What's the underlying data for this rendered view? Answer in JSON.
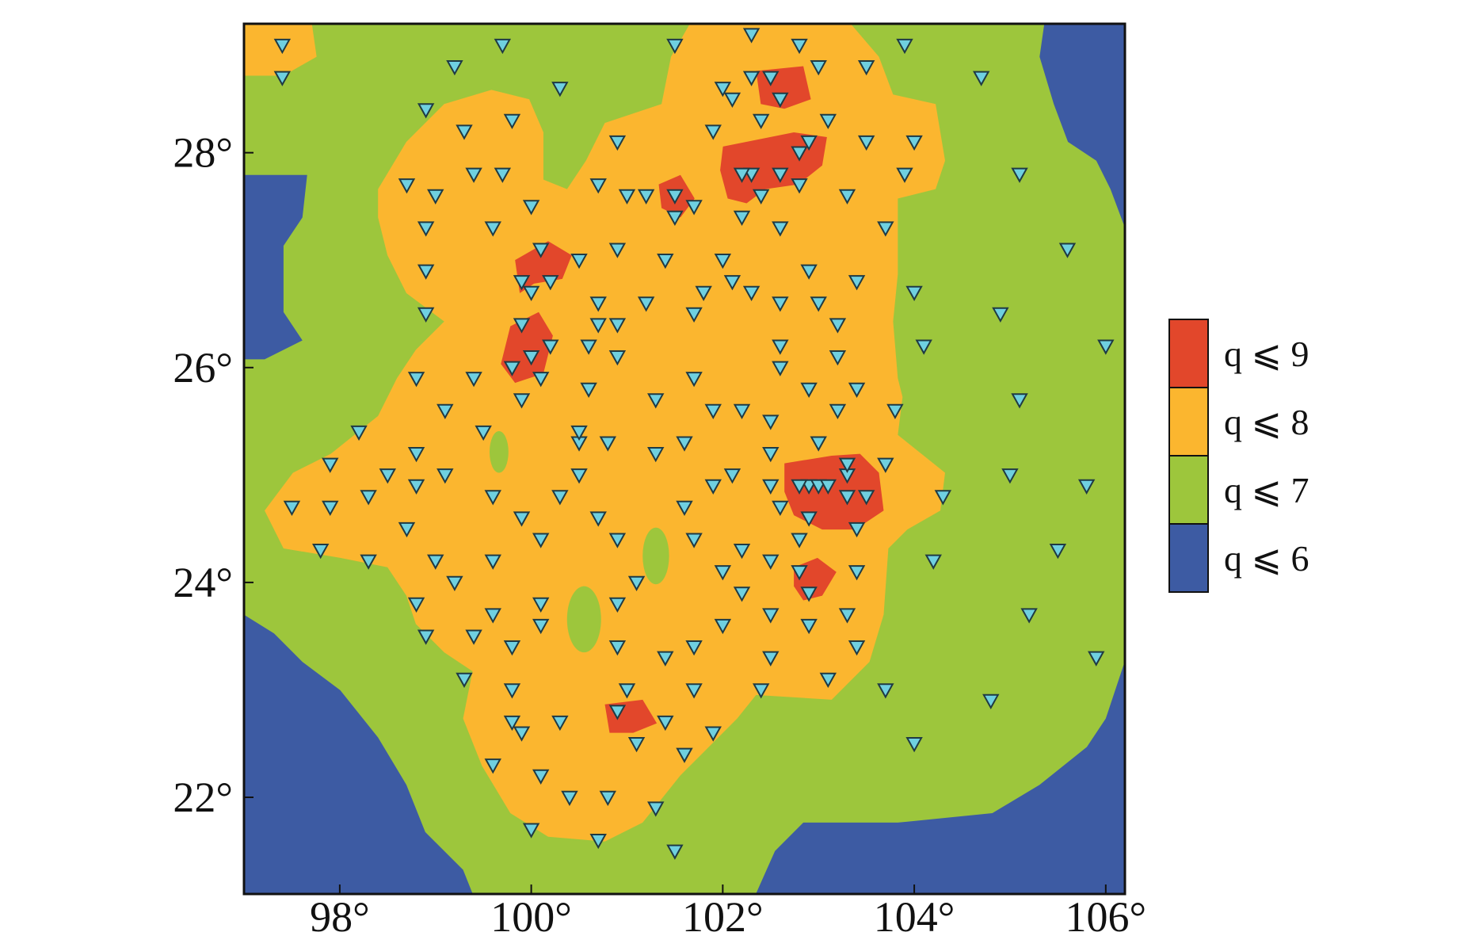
{
  "chart_data": {
    "type": "map",
    "xlim": [
      97,
      106.2
    ],
    "ylim": [
      21.1,
      29.2
    ],
    "xticks": [
      {
        "value": 98,
        "label": "98°"
      },
      {
        "value": 100,
        "label": "100°"
      },
      {
        "value": 102,
        "label": "102°"
      },
      {
        "value": 104,
        "label": "104°"
      },
      {
        "value": 106,
        "label": "106°"
      }
    ],
    "yticks": [
      {
        "value": 22,
        "label": "22°"
      },
      {
        "value": 24,
        "label": "24°"
      },
      {
        "value": 26,
        "label": "26°"
      },
      {
        "value": 28,
        "label": "28°"
      }
    ],
    "legend": [
      {
        "label": "q ⩽ 9",
        "color": "#e2472b"
      },
      {
        "label": "q ⩽ 8",
        "color": "#fbb62f"
      },
      {
        "label": "q ⩽ 7",
        "color": "#9dc63c"
      },
      {
        "label": "q ⩽ 6",
        "color": "#3d5ba3"
      }
    ],
    "stations": {
      "color": "#6fd0e0",
      "x": [
        97.4,
        97.4,
        99.7,
        99.2,
        100.3,
        98.9,
        99.8,
        99.3,
        98.7,
        99.0,
        99.4,
        99.7,
        100.0,
        98.9,
        99.6,
        98.9,
        98.9,
        98.8,
        99.1,
        99.4,
        99.5,
        98.2,
        97.9,
        97.5,
        97.9,
        97.8,
        98.3,
        98.5,
        98.7,
        98.8,
        98.8,
        99.1,
        98.3,
        99.0,
        99.2,
        98.8,
        98.9,
        99.3,
        99.4,
        99.6,
        99.6,
        99.9,
        99.6,
        99.8,
        99.8,
        99.8,
        99.9,
        99.6,
        100.1,
        100.3,
        100.0,
        100.4,
        100.8,
        100.7,
        101.3,
        101.5,
        101.6,
        101.9,
        101.4,
        101.1,
        101.0,
        100.9,
        101.4,
        101.7,
        101.7,
        102.0,
        102.4,
        102.5,
        102.9,
        103.1,
        103.3,
        103.4,
        103.7,
        104.0,
        104.8,
        105.2,
        105.9,
        105.5,
        105.8,
        105.0,
        104.3,
        104.2,
        103.4,
        102.5,
        102.2,
        102.0,
        101.7,
        101.1,
        100.9,
        100.7,
        100.9,
        100.1,
        100.1,
        100.1,
        100.3,
        100.5,
        100.5,
        100.8,
        101.3,
        101.6,
        101.3,
        101.6,
        101.9,
        102.1,
        102.2,
        102.5,
        102.5,
        102.5,
        102.6,
        102.8,
        102.9,
        103.0,
        103.3,
        103.4,
        103.7,
        103.8,
        103.2,
        102.9,
        103.4,
        103.2,
        103.2,
        103.0,
        102.9,
        103.4,
        104.0,
        104.1,
        104.9,
        106.0,
        105.1,
        105.6,
        105.1,
        104.7,
        103.9,
        103.5,
        104.0,
        103.5,
        103.9,
        103.7,
        103.3,
        103.1,
        103.0,
        102.8,
        102.3,
        101.5,
        102.3,
        102.0,
        102.1,
        101.9,
        102.5,
        102.6,
        102.4,
        102.9,
        102.8,
        102.6,
        102.3,
        102.2,
        102.4,
        102.8,
        102.6,
        102.2,
        101.5,
        101.7,
        101.5,
        101.2,
        101.0,
        100.7,
        100.9,
        100.9,
        101.4,
        102.0,
        102.1,
        102.3,
        102.6,
        101.8,
        101.7,
        101.2,
        100.9,
        100.7,
        100.7,
        100.5,
        100.1,
        100.2,
        99.9,
        100.0,
        99.9,
        100.2,
        100.0,
        99.8,
        100.1,
        99.9,
        100.6,
        100.9,
        100.6,
        100.5,
        101.7,
        101.9,
        102.2,
        102.5,
        102.6,
        102.6,
        102.8,
        103.0,
        103.1,
        103.3,
        103.5,
        103.3,
        102.9,
        102.8,
        102.9,
        100.9
      ],
      "y": [
        29.0,
        28.7,
        29.0,
        28.8,
        28.6,
        28.4,
        28.3,
        28.2,
        27.7,
        27.6,
        27.8,
        27.8,
        27.5,
        27.3,
        27.3,
        26.9,
        26.5,
        25.9,
        25.6,
        25.9,
        25.4,
        25.4,
        25.1,
        24.7,
        24.7,
        24.3,
        24.8,
        25.0,
        24.5,
        25.2,
        24.9,
        25.0,
        24.2,
        24.2,
        24.0,
        23.8,
        23.5,
        23.1,
        23.5,
        23.7,
        24.8,
        24.6,
        24.2,
        23.4,
        23.0,
        22.7,
        22.6,
        22.3,
        22.2,
        22.7,
        21.7,
        22.0,
        22.0,
        21.6,
        21.9,
        21.5,
        22.4,
        22.6,
        22.7,
        22.5,
        23.0,
        23.4,
        23.3,
        23.0,
        23.4,
        23.6,
        23.0,
        23.3,
        23.6,
        23.1,
        23.7,
        23.4,
        23.0,
        22.5,
        22.9,
        23.7,
        23.3,
        24.3,
        24.9,
        25.0,
        24.8,
        24.2,
        24.1,
        23.7,
        23.9,
        24.1,
        24.4,
        24.0,
        23.8,
        24.6,
        24.4,
        24.4,
        23.8,
        23.6,
        24.8,
        25.0,
        25.3,
        25.3,
        25.2,
        25.3,
        25.7,
        24.7,
        24.9,
        25.0,
        24.3,
        24.2,
        24.9,
        25.2,
        24.7,
        24.4,
        24.9,
        25.3,
        25.0,
        24.5,
        25.1,
        25.6,
        25.6,
        25.8,
        25.8,
        26.1,
        26.4,
        26.6,
        26.9,
        26.8,
        26.7,
        26.2,
        26.5,
        26.2,
        25.7,
        27.1,
        27.8,
        28.7,
        29.0,
        28.8,
        28.1,
        28.1,
        27.8,
        27.3,
        27.6,
        28.3,
        28.8,
        29.0,
        29.1,
        29.0,
        28.7,
        28.6,
        28.5,
        28.2,
        28.7,
        28.5,
        28.3,
        28.1,
        28.0,
        27.8,
        27.8,
        27.8,
        27.6,
        27.7,
        27.3,
        27.4,
        27.6,
        27.5,
        27.4,
        27.6,
        27.6,
        27.7,
        28.1,
        27.1,
        27.0,
        27.0,
        26.8,
        26.7,
        26.6,
        26.7,
        26.5,
        26.6,
        26.4,
        26.6,
        26.4,
        27.0,
        27.1,
        26.8,
        26.8,
        26.7,
        26.4,
        26.2,
        26.1,
        26.0,
        25.9,
        25.7,
        26.2,
        26.1,
        25.8,
        25.4,
        25.9,
        25.6,
        25.6,
        25.5,
        26.0,
        26.2,
        24.9,
        24.9,
        24.9,
        24.8,
        24.8,
        25.1,
        24.6,
        24.1,
        23.9,
        22.8
      ]
    }
  }
}
